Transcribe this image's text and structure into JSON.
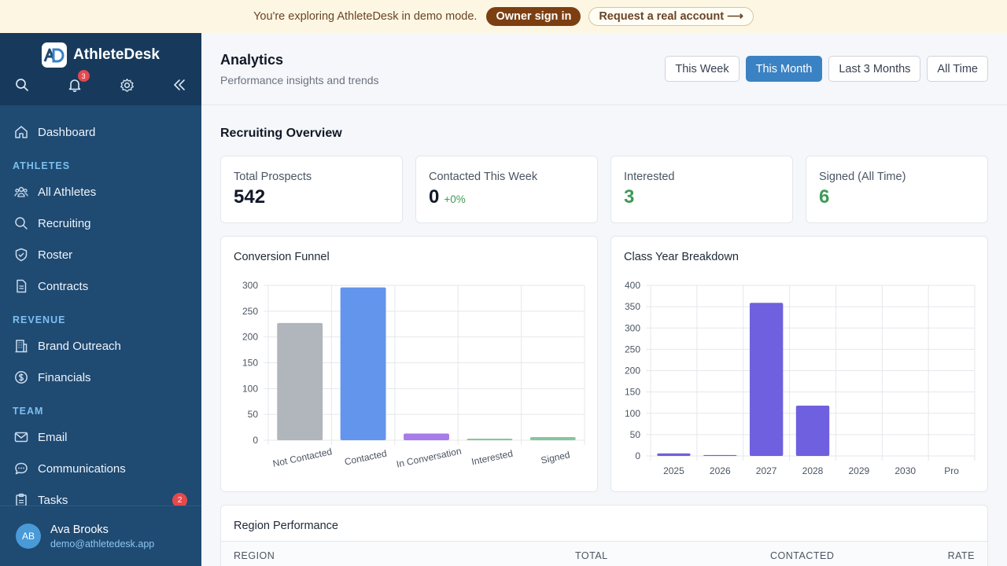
{
  "banner": {
    "text": "You're exploring AthleteDesk in demo mode.",
    "owner_sign_in": "Owner sign in",
    "request_account": "Request a real account ⟶"
  },
  "sidebar": {
    "brand": "AthleteDesk",
    "notification_count": "3",
    "items": {
      "dashboard": "Dashboard",
      "section_athletes": "ATHLETES",
      "all_athletes": "All Athletes",
      "recruiting": "Recruiting",
      "roster": "Roster",
      "contracts": "Contracts",
      "section_revenue": "REVENUE",
      "brand_outreach": "Brand Outreach",
      "financials": "Financials",
      "section_team": "TEAM",
      "email": "Email",
      "communications": "Communications",
      "tasks": "Tasks",
      "tasks_badge": "2"
    },
    "user": {
      "initials": "AB",
      "name": "Ava Brooks",
      "email": "demo@athletedesk.app"
    }
  },
  "header": {
    "title": "Analytics",
    "subtitle": "Performance insights and trends",
    "ranges": [
      "This Week",
      "This Month",
      "Last 3 Months",
      "All Time"
    ],
    "active_range": "This Month"
  },
  "overview": {
    "title": "Recruiting Overview",
    "stats": [
      {
        "label": "Total Prospects",
        "value": "542",
        "delta": ""
      },
      {
        "label": "Contacted This Week",
        "value": "0",
        "delta": "+0%"
      },
      {
        "label": "Interested",
        "value": "3",
        "delta": ""
      },
      {
        "label": "Signed (All Time)",
        "value": "6",
        "delta": ""
      }
    ]
  },
  "chart_data": [
    {
      "type": "bar",
      "title": "Conversion Funnel",
      "categories": [
        "Not Contacted",
        "Contacted",
        "In Conversation",
        "Interested",
        "Signed"
      ],
      "values": [
        227,
        296,
        13,
        3,
        6
      ],
      "colors": [
        "#b1b5bc",
        "#6495ed",
        "#a77be8",
        "#85c79b",
        "#85c79b"
      ],
      "ylim": [
        0,
        300
      ],
      "yticks": [
        0,
        50,
        100,
        150,
        200,
        250,
        300
      ],
      "grid": true
    },
    {
      "type": "bar",
      "title": "Class Year Breakdown",
      "categories": [
        "2025",
        "2026",
        "2027",
        "2028",
        "2029",
        "2030",
        "Pro"
      ],
      "values": [
        6,
        2,
        359,
        118,
        0,
        0,
        0
      ],
      "colors": [
        "#6e60de"
      ],
      "ylim": [
        0,
        400
      ],
      "yticks": [
        0,
        50,
        100,
        150,
        200,
        250,
        300,
        350,
        400
      ],
      "grid": true
    }
  ],
  "region": {
    "title": "Region Performance",
    "columns": [
      "REGION",
      "TOTAL",
      "CONTACTED",
      "RATE"
    ]
  }
}
